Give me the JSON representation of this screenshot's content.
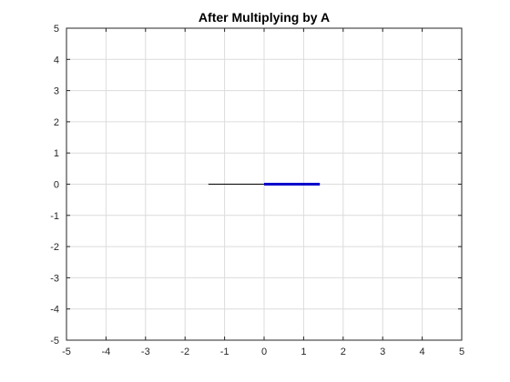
{
  "chart_data": {
    "type": "line",
    "title": "After Multiplying by A",
    "xlabel": "",
    "ylabel": "",
    "xlim": [
      -5,
      5
    ],
    "ylim": [
      -5,
      5
    ],
    "x_ticks": [
      -5,
      -4,
      -3,
      -2,
      -1,
      0,
      1,
      2,
      3,
      4,
      5
    ],
    "y_ticks": [
      -5,
      -4,
      -3,
      -2,
      -1,
      0,
      1,
      2,
      3,
      4,
      5
    ],
    "grid": true,
    "legend": "none",
    "series": [
      {
        "x": [
          -1.41,
          0
        ],
        "y": [
          0,
          0
        ],
        "color": "#000000",
        "line_style": "thin"
      },
      {
        "x": [
          0,
          1.41
        ],
        "y": [
          0,
          0
        ],
        "color": "#0000CC",
        "line_style": "thick"
      }
    ]
  }
}
